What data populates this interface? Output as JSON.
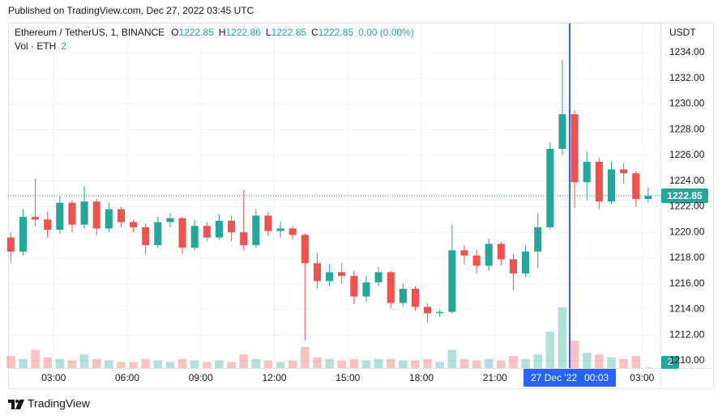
{
  "header": "Published on TradingView.com, Dec 27, 2022 03:45 UTC",
  "footer": "TradingView",
  "chart_data": {
    "type": "candlestick",
    "symbol": "Ethereum / TetherUS, 1, BINANCE",
    "ohlc_legend": [
      {
        "label": "O",
        "value": "1222.85"
      },
      {
        "label": "H",
        "value": "1222.86"
      },
      {
        "label": "L",
        "value": "1222.85"
      },
      {
        "label": "C",
        "value": "1222.85"
      },
      {
        "label": "",
        "value": "0.00 (0.00%)"
      }
    ],
    "volume_title": "Vol · ETH",
    "y_axis_label": "USDT",
    "up_color": "#26a69a",
    "down_color": "#ef5350",
    "x": [
      1.25,
      1.75,
      2.25,
      2.75,
      3.25,
      3.75,
      4.25,
      4.75,
      5.25,
      5.75,
      6.25,
      6.75,
      7.25,
      7.75,
      8.25,
      8.75,
      9.25,
      9.75,
      10.25,
      10.75,
      11.25,
      11.75,
      12.25,
      12.75,
      13.25,
      13.75,
      14.25,
      14.75,
      15.25,
      15.75,
      16.25,
      16.75,
      17.25,
      17.75,
      18.25,
      18.75,
      19.25,
      19.75,
      20.25,
      20.75,
      21.25,
      21.75,
      22.25,
      22.75,
      23.25,
      23.75,
      24.25,
      24.75,
      25.25,
      25.75,
      26.25,
      26.75,
      27.25
    ],
    "open": [
      1219.6,
      1218.5,
      1221.2,
      1221.0,
      1220.2,
      1222.3,
      1220.6,
      1222.4,
      1220.3,
      1221.8,
      1220.8,
      1220.4,
      1219.0,
      1220.8,
      1221.1,
      1218.8,
      1220.5,
      1219.6,
      1220.9,
      1220.0,
      1219.0,
      1221.3,
      1220.1,
      1220.3,
      1219.8,
      1217.6,
      1216.2,
      1216.9,
      1216.6,
      1215.0,
      1216.1,
      1216.9,
      1214.5,
      1215.6,
      1214.2,
      1213.7,
      1213.8,
      1218.6,
      1218.2,
      1217.4,
      1219.1,
      1217.9,
      1216.8,
      1218.5,
      1220.4,
      1226.5,
      1229.2,
      1223.9,
      1225.5,
      1222.4,
      1224.9,
      1224.6,
      1222.6
    ],
    "high": [
      1220.0,
      1221.8,
      1224.2,
      1221.6,
      1222.8,
      1222.5,
      1223.6,
      1222.6,
      1222.3,
      1222.0,
      1221.0,
      1220.7,
      1221.2,
      1221.5,
      1221.2,
      1221.0,
      1220.8,
      1221.4,
      1221.3,
      1223.3,
      1221.8,
      1221.6,
      1220.8,
      1220.5,
      1219.9,
      1218.4,
      1217.5,
      1217.6,
      1217.0,
      1216.6,
      1217.3,
      1217.0,
      1216.0,
      1215.8,
      1214.5,
      1214.0,
      1220.6,
      1219.0,
      1218.6,
      1219.5,
      1219.3,
      1218.3,
      1219.0,
      1221.5,
      1227.0,
      1233.4,
      1229.5,
      1226.3,
      1225.8,
      1225.5,
      1225.4,
      1224.8,
      1223.5
    ],
    "low": [
      1217.6,
      1218.2,
      1220.5,
      1219.6,
      1219.9,
      1220.0,
      1220.3,
      1219.8,
      1220.0,
      1220.4,
      1220.0,
      1218.3,
      1218.8,
      1220.4,
      1218.3,
      1218.6,
      1219.3,
      1219.4,
      1219.3,
      1218.6,
      1218.8,
      1219.7,
      1219.6,
      1219.4,
      1211.6,
      1215.6,
      1215.8,
      1216.0,
      1214.4,
      1214.6,
      1215.8,
      1214.1,
      1214.2,
      1213.9,
      1213.0,
      1213.4,
      1213.7,
      1217.5,
      1216.8,
      1217.0,
      1217.4,
      1215.5,
      1216.5,
      1217.2,
      1220.2,
      1226.0,
      1221.9,
      1222.5,
      1221.8,
      1222.2,
      1223.8,
      1222.0,
      1222.3
    ],
    "close": [
      1218.5,
      1221.2,
      1221.0,
      1220.2,
      1222.3,
      1220.6,
      1222.4,
      1220.3,
      1221.8,
      1220.8,
      1220.4,
      1219.0,
      1220.8,
      1221.1,
      1218.8,
      1220.5,
      1219.6,
      1220.9,
      1220.0,
      1219.0,
      1221.3,
      1220.1,
      1220.3,
      1219.8,
      1217.6,
      1216.2,
      1216.9,
      1216.6,
      1215.0,
      1216.1,
      1216.9,
      1214.5,
      1215.6,
      1214.2,
      1213.7,
      1213.8,
      1218.6,
      1218.2,
      1217.4,
      1219.1,
      1217.9,
      1216.8,
      1218.5,
      1220.4,
      1226.5,
      1229.2,
      1223.9,
      1225.5,
      1222.4,
      1224.9,
      1224.6,
      1222.6,
      1222.85
    ],
    "volume": [
      40,
      30,
      60,
      35,
      30,
      25,
      45,
      30,
      25,
      20,
      20,
      30,
      25,
      20,
      30,
      25,
      20,
      25,
      20,
      45,
      30,
      25,
      20,
      25,
      70,
      35,
      30,
      25,
      30,
      25,
      30,
      30,
      25,
      25,
      30,
      20,
      60,
      30,
      25,
      30,
      25,
      40,
      30,
      45,
      120,
      200,
      90,
      50,
      45,
      35,
      30,
      40,
      2
    ],
    "last_price": {
      "value": 1222.85,
      "color": "#26a69a"
    },
    "crosshair": {
      "x": 24.05,
      "date": "27 Dec '22",
      "time": "00:03",
      "color": "#2962ff"
    },
    "xlim": [
      1.14,
      27.75
    ],
    "ylim": [
      1209.43,
      1236.27
    ],
    "xticks": [
      {
        "value": 3,
        "label": "03:00"
      },
      {
        "value": 6,
        "label": "06:00"
      },
      {
        "value": 9,
        "label": "09:00"
      },
      {
        "value": 12,
        "label": "12:00"
      },
      {
        "value": 15,
        "label": "15:00"
      },
      {
        "value": 18,
        "label": "18:00"
      },
      {
        "value": 21,
        "label": "21:00"
      },
      {
        "value": 27,
        "label": "03:00"
      }
    ],
    "yticks": [
      {
        "value": 1210,
        "label": "1210.00"
      },
      {
        "value": 1212,
        "label": "1212.00"
      },
      {
        "value": 1214,
        "label": "1214.00"
      },
      {
        "value": 1216,
        "label": "1216.00"
      },
      {
        "value": 1218,
        "label": "1218.00"
      },
      {
        "value": 1220,
        "label": "1220.00"
      },
      {
        "value": 1222,
        "label": "1222.00"
      },
      {
        "value": 1224,
        "label": "1224.00"
      },
      {
        "value": 1226,
        "label": "1226.00"
      },
      {
        "value": 1228,
        "label": "1228.00"
      },
      {
        "value": 1230,
        "label": "1230.00"
      },
      {
        "value": 1232,
        "label": "1232.00"
      },
      {
        "value": 1234,
        "label": "1234.00"
      }
    ],
    "grid": true
  }
}
